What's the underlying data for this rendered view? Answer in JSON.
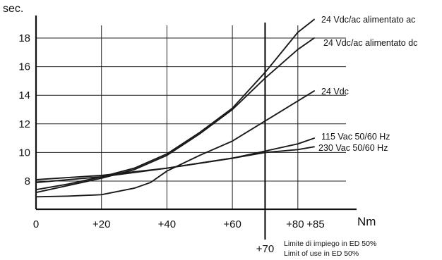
{
  "chart_data": {
    "type": "line",
    "ylabel": "sec.",
    "xlabel": "Nm",
    "xlim": [
      0,
      85
    ],
    "ylim": [
      7,
      19
    ],
    "grid": true,
    "x_ticks": [
      {
        "value": 0,
        "label": "0"
      },
      {
        "value": 20,
        "label": "+20"
      },
      {
        "value": 40,
        "label": "+40"
      },
      {
        "value": 60,
        "label": "+60"
      },
      {
        "value": 80,
        "label": "+80"
      },
      {
        "value": 85,
        "label": "+85"
      }
    ],
    "y_ticks": [
      {
        "value": 8,
        "label": "8"
      },
      {
        "value": 10,
        "label": "10"
      },
      {
        "value": 12,
        "label": "12"
      },
      {
        "value": 14,
        "label": "14"
      },
      {
        "value": 16,
        "label": "16"
      },
      {
        "value": 18,
        "label": "18"
      }
    ],
    "series": [
      {
        "name": "24 Vdc/ac alimentato ac",
        "x": [
          0,
          10,
          20,
          30,
          40,
          50,
          60,
          70,
          80,
          85
        ],
        "y": [
          7.4,
          7.8,
          8.3,
          8.9,
          9.9,
          11.4,
          13.1,
          15.6,
          18.4,
          19.3
        ]
      },
      {
        "name": "24 Vdc/ac alimentato dc",
        "x": [
          0,
          10,
          20,
          30,
          40,
          50,
          60,
          70,
          80,
          85
        ],
        "y": [
          7.2,
          7.7,
          8.2,
          8.8,
          9.8,
          11.3,
          13.0,
          15.2,
          17.2,
          18.0
        ]
      },
      {
        "name": "24 Vdc",
        "x": [
          0,
          10,
          20,
          30,
          35,
          40,
          50,
          60,
          70,
          80,
          85
        ],
        "y": [
          6.9,
          6.95,
          7.05,
          7.5,
          7.9,
          8.7,
          9.8,
          10.8,
          12.2,
          13.6,
          14.3
        ]
      },
      {
        "name": "115 Vac 50/60 Hz",
        "x": [
          0,
          20,
          40,
          60,
          70,
          80,
          85
        ],
        "y": [
          7.9,
          8.3,
          8.9,
          9.6,
          10.1,
          10.6,
          11.0
        ]
      },
      {
        "name": "230 Vac 50/60 Hz",
        "x": [
          0,
          20,
          40,
          60,
          70,
          80,
          85
        ],
        "y": [
          8.1,
          8.4,
          8.9,
          9.6,
          10.0,
          10.2,
          10.4
        ]
      }
    ],
    "limit_line": {
      "x": 70,
      "label": "+70",
      "note_it": "Limite di impiego in ED 50%",
      "note_en": "Limit of use in ED 50%"
    }
  }
}
